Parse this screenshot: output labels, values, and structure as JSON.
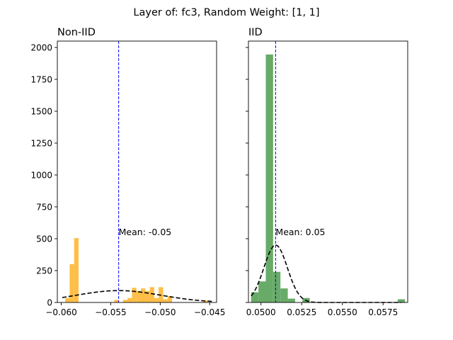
{
  "figure_title": "Layer of: fc3, Random Weight: [1, 1]",
  "chart_data": [
    {
      "type": "bar",
      "title": "Non-IID",
      "xlabel": "",
      "ylabel": "",
      "xlim": [
        -0.0604,
        -0.0443
      ],
      "ylim": [
        0,
        2050
      ],
      "xticks": [
        "−0.060",
        "−0.055",
        "−0.050",
        "−0.045"
      ],
      "xtick_values": [
        -0.06,
        -0.055,
        -0.05,
        -0.045
      ],
      "yticks": [
        "0",
        "250",
        "500",
        "750",
        "1000",
        "1250",
        "1500",
        "1750",
        "2000"
      ],
      "ytick_values": [
        0,
        250,
        500,
        750,
        1000,
        1250,
        1500,
        1750,
        2000
      ],
      "bar_color": "#FFA500",
      "bin_width": 0.00045,
      "bins": [
        {
          "x": -0.05938,
          "value": 35
        },
        {
          "x": -0.05893,
          "value": 300
        },
        {
          "x": -0.05848,
          "value": 505
        },
        {
          "x": -0.05803,
          "value": 0
        },
        {
          "x": -0.05758,
          "value": 0
        },
        {
          "x": -0.05713,
          "value": 0
        },
        {
          "x": -0.05668,
          "value": 0
        },
        {
          "x": -0.05623,
          "value": 0
        },
        {
          "x": -0.05578,
          "value": 0
        },
        {
          "x": -0.05533,
          "value": 0
        },
        {
          "x": -0.05488,
          "value": 0
        },
        {
          "x": -0.05443,
          "value": 20
        },
        {
          "x": -0.05398,
          "value": 0
        },
        {
          "x": -0.05353,
          "value": 20
        },
        {
          "x": -0.05308,
          "value": 35
        },
        {
          "x": -0.05263,
          "value": 115
        },
        {
          "x": -0.05218,
          "value": 90
        },
        {
          "x": -0.05173,
          "value": 110
        },
        {
          "x": -0.05128,
          "value": 90
        },
        {
          "x": -0.05083,
          "value": 120
        },
        {
          "x": -0.05038,
          "value": 35
        },
        {
          "x": -0.04993,
          "value": 120
        },
        {
          "x": -0.04948,
          "value": 25
        },
        {
          "x": -0.04903,
          "value": 50
        },
        {
          "x": -0.04858,
          "value": 0
        },
        {
          "x": -0.04813,
          "value": 0
        },
        {
          "x": -0.04768,
          "value": 0
        },
        {
          "x": -0.04723,
          "value": 0
        },
        {
          "x": -0.04678,
          "value": 0
        },
        {
          "x": -0.04633,
          "value": 0
        },
        {
          "x": -0.04588,
          "value": 0
        },
        {
          "x": -0.04543,
          "value": 15
        }
      ],
      "fit": {
        "type": "normal-pdf",
        "mean": -0.0542,
        "sd": 0.0043,
        "peak": 93,
        "x_from": -0.0599,
        "x_to": -0.0447
      },
      "mean_line": -0.0542,
      "mean_label": "Mean: -0.05"
    },
    {
      "type": "bar",
      "title": "IID",
      "xlabel": "",
      "ylabel": "",
      "xlim": [
        0.04923,
        0.05901
      ],
      "ylim": [
        0,
        2050
      ],
      "xticks": [
        "0.0500",
        "0.0525",
        "0.0550",
        "0.0575"
      ],
      "xtick_values": [
        0.05,
        0.0525,
        0.055,
        0.0575
      ],
      "yticks": [],
      "bar_color": "#2E8B2E",
      "bin_width": 0.00045,
      "bins": [
        {
          "x": 0.04962,
          "value": 80
        },
        {
          "x": 0.05007,
          "value": 165
        },
        {
          "x": 0.05052,
          "value": 1945
        },
        {
          "x": 0.05097,
          "value": 240
        },
        {
          "x": 0.05142,
          "value": 110
        },
        {
          "x": 0.05187,
          "value": 30
        },
        {
          "x": 0.05232,
          "value": 0
        },
        {
          "x": 0.05277,
          "value": 35
        },
        {
          "x": 0.05322,
          "value": 0
        },
        {
          "x": 0.05367,
          "value": 0
        },
        {
          "x": 0.05412,
          "value": 0
        },
        {
          "x": 0.05457,
          "value": 0
        },
        {
          "x": 0.05502,
          "value": 0
        },
        {
          "x": 0.05547,
          "value": 0
        },
        {
          "x": 0.05592,
          "value": 0
        },
        {
          "x": 0.05637,
          "value": 0
        },
        {
          "x": 0.05682,
          "value": 0
        },
        {
          "x": 0.05727,
          "value": 0
        },
        {
          "x": 0.05772,
          "value": 0
        },
        {
          "x": 0.05817,
          "value": 0
        },
        {
          "x": 0.05862,
          "value": 25
        }
      ],
      "fit": {
        "type": "normal-pdf",
        "mean": 0.0509,
        "sd": 0.00072,
        "peak": 450,
        "x_from": 0.0494,
        "x_to": 0.0586
      },
      "mean_line": 0.0509,
      "mean_label": "Mean: 0.05"
    }
  ]
}
